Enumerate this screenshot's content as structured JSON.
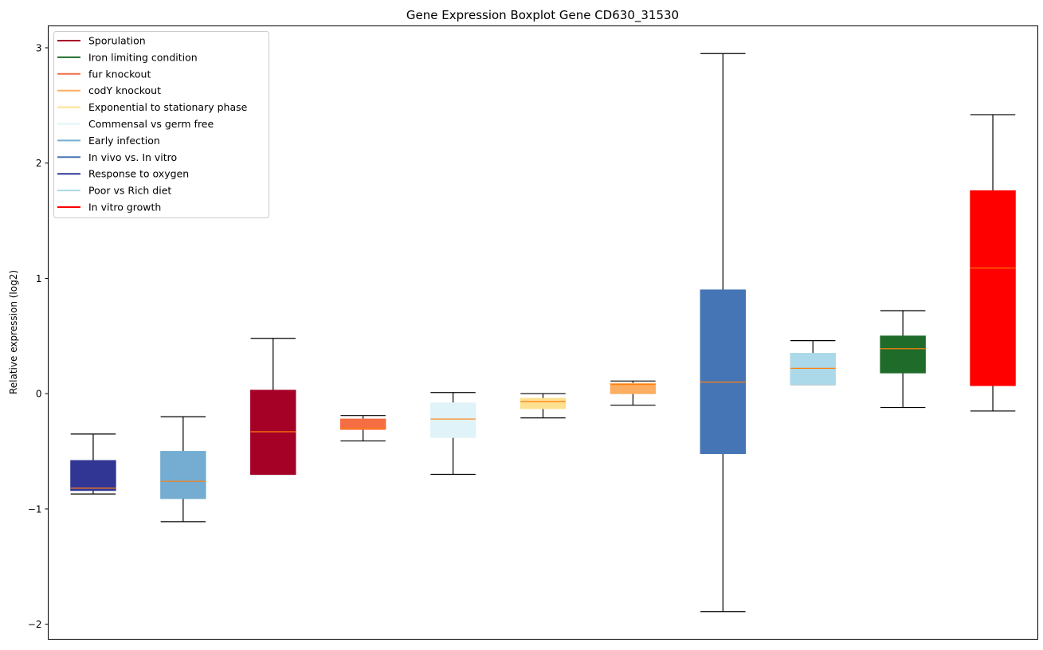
{
  "chart_data": {
    "type": "boxplot",
    "title": "Gene Expression Boxplot Gene CD630_31530",
    "xlabel": "",
    "ylabel": "Relative expression (log2)",
    "ylim": [
      -2.13,
      3.19
    ],
    "yticks": [
      -2,
      -1,
      0,
      1,
      2,
      3
    ],
    "grid": false,
    "legend_position": "top-left",
    "median_color": "#ff7f0e",
    "legend": [
      {
        "name": "Sporulation",
        "color": "#a50026"
      },
      {
        "name": "Iron limiting condition",
        "color": "#1f6b2a"
      },
      {
        "name": "fur knockout",
        "color": "#f46d43"
      },
      {
        "name": "codY knockout",
        "color": "#fdae61"
      },
      {
        "name": "Exponential to stationary phase",
        "color": "#fee090"
      },
      {
        "name": "Commensal vs germ free",
        "color": "#e0f3f8"
      },
      {
        "name": "Early infection",
        "color": "#74add1"
      },
      {
        "name": "In vivo vs. In vitro",
        "color": "#4575b4"
      },
      {
        "name": "Response to oxygen",
        "color": "#313695"
      },
      {
        "name": "Poor vs Rich diet",
        "color": "#abd9e9"
      },
      {
        "name": "In vitro growth",
        "color": "#ff0000"
      }
    ],
    "boxes": [
      {
        "name": "Response to oxygen",
        "color": "#313695",
        "whisker_low": -0.87,
        "q1": -0.84,
        "median": -0.82,
        "q3": -0.58,
        "whisker_high": -0.35
      },
      {
        "name": "Early infection",
        "color": "#74add1",
        "whisker_low": -1.11,
        "q1": -0.91,
        "median": -0.76,
        "q3": -0.5,
        "whisker_high": -0.2
      },
      {
        "name": "Sporulation",
        "color": "#a50026",
        "whisker_low": -0.7,
        "q1": -0.7,
        "median": -0.33,
        "q3": 0.03,
        "whisker_high": 0.48
      },
      {
        "name": "fur knockout",
        "color": "#f46d43",
        "whisker_low": -0.41,
        "q1": -0.31,
        "median": -0.3,
        "q3": -0.22,
        "whisker_high": -0.19
      },
      {
        "name": "Commensal vs germ free",
        "color": "#e0f3f8",
        "whisker_low": -0.7,
        "q1": -0.38,
        "median": -0.22,
        "q3": -0.08,
        "whisker_high": 0.01
      },
      {
        "name": "Exponential to stationary phase",
        "color": "#fee090",
        "whisker_low": -0.21,
        "q1": -0.13,
        "median": -0.07,
        "q3": -0.04,
        "whisker_high": 0.0
      },
      {
        "name": "codY knockout",
        "color": "#fdae61",
        "whisker_low": -0.1,
        "q1": 0.0,
        "median": 0.08,
        "q3": 0.09,
        "whisker_high": 0.11
      },
      {
        "name": "In vivo vs. In vitro",
        "color": "#4575b4",
        "whisker_low": -1.89,
        "q1": -0.52,
        "median": 0.1,
        "q3": 0.9,
        "whisker_high": 2.95
      },
      {
        "name": "Poor vs Rich diet",
        "color": "#abd9e9",
        "whisker_low": 0.08,
        "q1": 0.08,
        "median": 0.22,
        "q3": 0.35,
        "whisker_high": 0.46
      },
      {
        "name": "Iron limiting condition",
        "color": "#1f6b2a",
        "whisker_low": -0.12,
        "q1": 0.18,
        "median": 0.39,
        "q3": 0.5,
        "whisker_high": 0.72
      },
      {
        "name": "In vitro growth",
        "color": "#ff0000",
        "whisker_low": -0.15,
        "q1": 0.07,
        "median": 1.09,
        "q3": 1.76,
        "whisker_high": 2.42
      }
    ]
  }
}
